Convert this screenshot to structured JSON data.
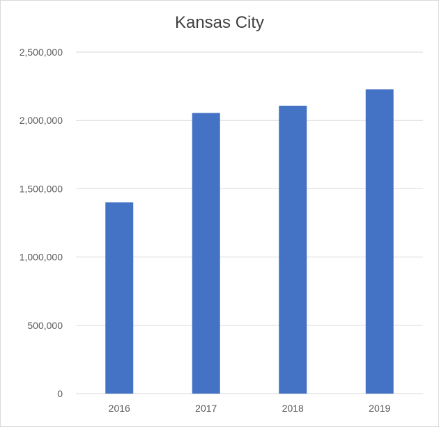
{
  "chart_data": {
    "type": "bar",
    "title": "Kansas City",
    "categories": [
      "2016",
      "2017",
      "2018",
      "2019"
    ],
    "values": [
      1400000,
      2055000,
      2108000,
      2228000
    ],
    "xlabel": "",
    "ylabel": "",
    "ylim": [
      0,
      2500000
    ],
    "yticks": [
      0,
      500000,
      1000000,
      1500000,
      2000000,
      2500000
    ],
    "ytick_labels": [
      "0",
      "500,000",
      "1,000,000",
      "1,500,000",
      "2,000,000",
      "2,500,000"
    ],
    "grid": true,
    "legend": "none",
    "colors": {
      "bar": "#4472C4",
      "grid": "#d9d9d9",
      "text": "#595959"
    }
  }
}
